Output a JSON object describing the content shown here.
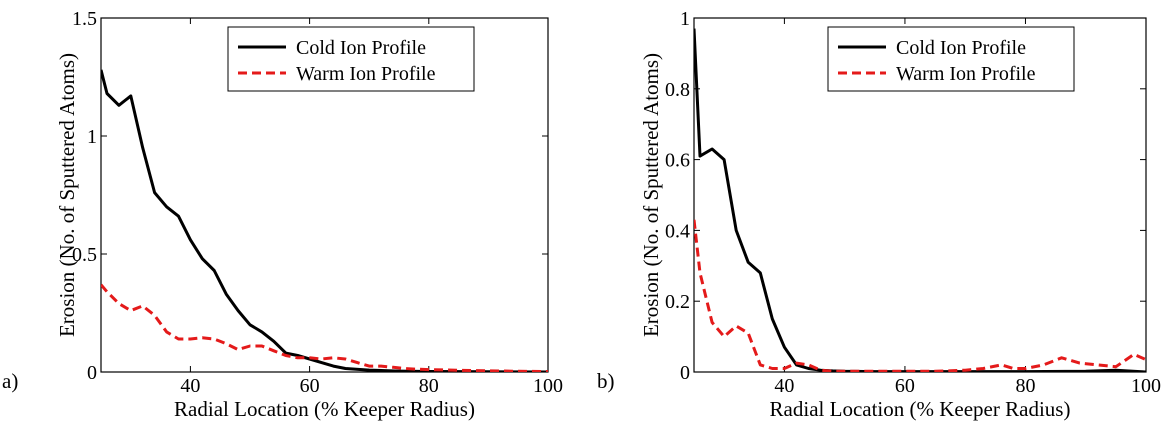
{
  "chart_data": [
    {
      "type": "line",
      "panel_label": "a)",
      "xlabel": "Radial Location (% Keeper Radius)",
      "ylabel": "Erosion (No. of Sputtered Atoms)",
      "xlim": [
        25,
        100
      ],
      "ylim": [
        0,
        1.5
      ],
      "xticks": [
        40,
        60,
        80,
        100
      ],
      "xtick_labels": [
        "40",
        "60",
        "80",
        "100"
      ],
      "yticks": [
        0,
        0.5,
        1,
        1.5
      ],
      "ytick_labels": [
        "0",
        "0.5",
        "1",
        "1.5"
      ],
      "grid": false,
      "legend_position": "top-right",
      "series": [
        {
          "name": "Cold Ion Profile",
          "color": "#000000",
          "style": "solid",
          "x": [
            25,
            26,
            28,
            30,
            32,
            34,
            36,
            38,
            40,
            42,
            44,
            46,
            48,
            50,
            52,
            54,
            56,
            58,
            60,
            62,
            64,
            66,
            70,
            75,
            80,
            90,
            100
          ],
          "y": [
            1.28,
            1.18,
            1.13,
            1.17,
            0.95,
            0.76,
            0.7,
            0.66,
            0.56,
            0.48,
            0.43,
            0.33,
            0.26,
            0.2,
            0.17,
            0.13,
            0.08,
            0.07,
            0.055,
            0.04,
            0.025,
            0.015,
            0.008,
            0.004,
            0.002,
            0.001,
            0.0
          ]
        },
        {
          "name": "Warm Ion Profile",
          "color": "#e41a1a",
          "style": "dashed",
          "x": [
            25,
            26,
            28,
            30,
            32,
            34,
            36,
            38,
            40,
            42,
            44,
            46,
            48,
            50,
            52,
            54,
            56,
            58,
            60,
            62,
            64,
            66,
            68,
            70,
            72,
            74,
            76,
            78,
            80,
            85,
            90,
            95,
            100
          ],
          "y": [
            0.37,
            0.34,
            0.29,
            0.26,
            0.28,
            0.24,
            0.17,
            0.14,
            0.14,
            0.145,
            0.14,
            0.12,
            0.095,
            0.11,
            0.11,
            0.09,
            0.07,
            0.06,
            0.06,
            0.055,
            0.06,
            0.055,
            0.04,
            0.025,
            0.025,
            0.02,
            0.015,
            0.012,
            0.01,
            0.007,
            0.005,
            0.003,
            0.002
          ]
        }
      ]
    },
    {
      "type": "line",
      "panel_label": "b)",
      "xlabel": "Radial Location (% Keeper Radius)",
      "ylabel": "Erosion (No. of Sputtered Atoms)",
      "xlim": [
        25,
        100
      ],
      "ylim": [
        0,
        1
      ],
      "xticks": [
        40,
        60,
        80,
        100
      ],
      "xtick_labels": [
        "40",
        "60",
        "80",
        "100"
      ],
      "yticks": [
        0,
        0.2,
        0.4,
        0.6,
        0.8,
        1
      ],
      "ytick_labels": [
        "0",
        "0.2",
        "0.4",
        "0.6",
        "0.8",
        "1"
      ],
      "grid": false,
      "legend_position": "top-right",
      "series": [
        {
          "name": "Cold Ion Profile",
          "color": "#000000",
          "style": "solid",
          "x": [
            25,
            26,
            28,
            30,
            32,
            34,
            36,
            38,
            40,
            42,
            44,
            46,
            48,
            50,
            55,
            60,
            70,
            80,
            90,
            95,
            100
          ],
          "y": [
            0.97,
            0.61,
            0.63,
            0.6,
            0.4,
            0.31,
            0.28,
            0.15,
            0.07,
            0.02,
            0.01,
            0.005,
            0.003,
            0.002,
            0.001,
            0.001,
            0.001,
            0.001,
            0.002,
            0.005,
            0.0
          ]
        },
        {
          "name": "Warm Ion Profile",
          "color": "#e41a1a",
          "style": "dashed",
          "x": [
            25,
            26,
            28,
            30,
            32,
            34,
            36,
            38,
            40,
            42,
            44,
            46,
            48,
            50,
            55,
            60,
            65,
            70,
            73,
            76,
            78,
            80,
            83,
            86,
            89,
            92,
            95,
            98,
            100
          ],
          "y": [
            0.43,
            0.28,
            0.14,
            0.1,
            0.13,
            0.11,
            0.02,
            0.01,
            0.01,
            0.025,
            0.02,
            0.005,
            0.002,
            0.002,
            0.002,
            0.002,
            0.002,
            0.005,
            0.01,
            0.02,
            0.01,
            0.01,
            0.02,
            0.04,
            0.025,
            0.02,
            0.015,
            0.05,
            0.035
          ]
        }
      ]
    }
  ]
}
